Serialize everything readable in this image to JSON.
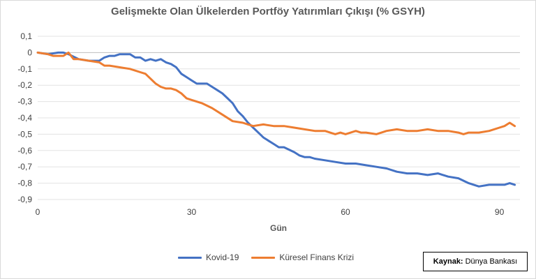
{
  "chart_data": {
    "type": "line",
    "title": "Gelişmekte Olan Ülkelerden Portföy Yatırımları Çıkışı (% GSYH)",
    "xlabel": "Gün",
    "ylabel": "",
    "xlim": [
      0,
      94
    ],
    "ylim": [
      -0.9,
      0.1
    ],
    "xticks": [
      0,
      30,
      60,
      90
    ],
    "yticks": [
      0.1,
      0,
      -0.1,
      -0.2,
      -0.3,
      -0.4,
      -0.5,
      -0.6,
      -0.7,
      -0.8,
      -0.9
    ],
    "ytick_labels": [
      "0,1",
      "0",
      "-0,1",
      "-0,2",
      "-0,3",
      "-0,4",
      "-0,5",
      "-0,6",
      "-0,7",
      "-0,8",
      "-0,9"
    ],
    "grid": true,
    "legend_position": "bottom",
    "series": [
      {
        "name": "Kovid-19",
        "color": "#4472c4",
        "x": [
          0,
          2,
          4,
          5,
          6,
          8,
          10,
          12,
          13,
          14,
          15,
          16,
          17,
          18,
          19,
          20,
          21,
          22,
          23,
          24,
          25,
          26,
          27,
          28,
          29,
          30,
          31,
          32,
          33,
          34,
          35,
          36,
          37,
          38,
          39,
          40,
          41,
          42,
          43,
          44,
          45,
          46,
          47,
          48,
          50,
          51,
          52,
          53,
          54,
          56,
          58,
          60,
          62,
          64,
          66,
          68,
          70,
          72,
          74,
          76,
          78,
          80,
          82,
          84,
          85,
          86,
          88,
          90,
          91,
          92,
          93
        ],
        "y": [
          0,
          -0.01,
          0,
          0,
          -0.01,
          -0.04,
          -0.05,
          -0.05,
          -0.03,
          -0.02,
          -0.02,
          -0.01,
          -0.01,
          -0.01,
          -0.03,
          -0.03,
          -0.05,
          -0.04,
          -0.05,
          -0.04,
          -0.06,
          -0.07,
          -0.09,
          -0.13,
          -0.15,
          -0.17,
          -0.19,
          -0.19,
          -0.19,
          -0.21,
          -0.23,
          -0.25,
          -0.28,
          -0.31,
          -0.36,
          -0.39,
          -0.43,
          -0.46,
          -0.49,
          -0.52,
          -0.54,
          -0.56,
          -0.58,
          -0.58,
          -0.61,
          -0.63,
          -0.64,
          -0.64,
          -0.65,
          -0.66,
          -0.67,
          -0.68,
          -0.68,
          -0.69,
          -0.7,
          -0.71,
          -0.73,
          -0.74,
          -0.74,
          -0.75,
          -0.74,
          -0.76,
          -0.77,
          -0.8,
          -0.81,
          -0.82,
          -0.81,
          -0.81,
          -0.81,
          -0.8,
          -0.81
        ]
      },
      {
        "name": "Küresel Finans Krizi",
        "color": "#ed7d31",
        "x": [
          0,
          2,
          3,
          4,
          5,
          6,
          7,
          8,
          10,
          12,
          13,
          14,
          16,
          18,
          20,
          21,
          22,
          23,
          24,
          25,
          26,
          27,
          28,
          29,
          30,
          32,
          34,
          36,
          38,
          40,
          41,
          42,
          44,
          46,
          48,
          50,
          52,
          54,
          56,
          57,
          58,
          59,
          60,
          62,
          63,
          64,
          66,
          68,
          70,
          72,
          74,
          76,
          78,
          80,
          82,
          83,
          84,
          86,
          88,
          90,
          91,
          92,
          93
        ],
        "y": [
          0,
          -0.01,
          -0.02,
          -0.02,
          -0.02,
          0,
          -0.04,
          -0.04,
          -0.05,
          -0.06,
          -0.08,
          -0.08,
          -0.09,
          -0.1,
          -0.12,
          -0.13,
          -0.16,
          -0.19,
          -0.21,
          -0.22,
          -0.22,
          -0.23,
          -0.25,
          -0.28,
          -0.29,
          -0.31,
          -0.34,
          -0.38,
          -0.42,
          -0.43,
          -0.44,
          -0.45,
          -0.44,
          -0.45,
          -0.45,
          -0.46,
          -0.47,
          -0.48,
          -0.48,
          -0.49,
          -0.5,
          -0.49,
          -0.5,
          -0.48,
          -0.49,
          -0.49,
          -0.5,
          -0.48,
          -0.47,
          -0.48,
          -0.48,
          -0.47,
          -0.48,
          -0.48,
          -0.49,
          -0.5,
          -0.49,
          -0.49,
          -0.48,
          -0.46,
          -0.45,
          -0.43,
          -0.45
        ]
      }
    ]
  },
  "source": {
    "label": "Kaynak:",
    "value": "Dünya Bankası"
  }
}
